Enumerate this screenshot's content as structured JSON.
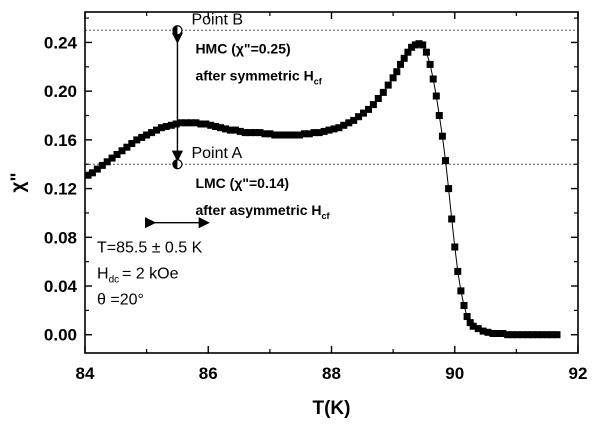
{
  "chart_data": {
    "type": "scatter",
    "xlabel": "T(K)",
    "ylabel": "χ\"",
    "xlim": [
      84,
      92
    ],
    "ylim": [
      -0.015,
      0.265
    ],
    "xticks": [
      "84",
      "86",
      "88",
      "90",
      "92"
    ],
    "yticks": [
      "0.00",
      "0.04",
      "0.08",
      "0.12",
      "0.16",
      "0.20",
      "0.24"
    ],
    "xtick_values": [
      84,
      86,
      88,
      90,
      92
    ],
    "ytick_values": [
      0,
      0.04,
      0.08,
      0.12,
      0.16,
      0.2,
      0.24
    ],
    "hlines": [
      0.25,
      0.14
    ],
    "series": [
      {
        "marker": "square",
        "color": "#000000",
        "x": [
          84.05,
          84.12,
          84.2,
          84.28,
          84.36,
          84.44,
          84.52,
          84.6,
          84.68,
          84.76,
          84.84,
          84.92,
          85.0,
          85.08,
          85.16,
          85.24,
          85.32,
          85.4,
          85.48,
          85.56,
          85.64,
          85.72,
          85.8,
          85.88,
          85.96,
          86.04,
          86.12,
          86.2,
          86.28,
          86.36,
          86.44,
          86.52,
          86.6,
          86.68,
          86.76,
          86.84,
          86.92,
          87.0,
          87.08,
          87.16,
          87.24,
          87.32,
          87.4,
          87.48,
          87.56,
          87.64,
          87.72,
          87.8,
          87.88,
          87.96,
          88.04,
          88.12,
          88.2,
          88.28,
          88.36,
          88.44,
          88.52,
          88.6,
          88.68,
          88.76,
          88.84,
          88.92,
          89.0,
          89.06,
          89.12,
          89.18,
          89.24,
          89.3,
          89.36,
          89.42,
          89.48,
          89.54,
          89.6,
          89.65,
          89.7,
          89.75,
          89.8,
          89.85,
          89.9,
          89.95,
          90.0,
          90.05,
          90.1,
          90.15,
          90.2,
          90.25,
          90.3,
          90.38,
          90.46,
          90.54,
          90.62,
          90.7,
          90.78,
          90.86,
          90.94,
          91.02,
          91.1,
          91.18,
          91.26,
          91.34,
          91.42,
          91.5,
          91.58,
          91.66
        ],
        "y": [
          0.131,
          0.133,
          0.136,
          0.139,
          0.142,
          0.145,
          0.148,
          0.151,
          0.154,
          0.157,
          0.16,
          0.162,
          0.164,
          0.166,
          0.168,
          0.17,
          0.171,
          0.172,
          0.173,
          0.174,
          0.174,
          0.174,
          0.174,
          0.173,
          0.173,
          0.172,
          0.171,
          0.17,
          0.169,
          0.168,
          0.168,
          0.167,
          0.166,
          0.166,
          0.166,
          0.166,
          0.165,
          0.165,
          0.164,
          0.164,
          0.164,
          0.164,
          0.164,
          0.164,
          0.165,
          0.165,
          0.166,
          0.166,
          0.167,
          0.168,
          0.169,
          0.17,
          0.172,
          0.174,
          0.176,
          0.179,
          0.182,
          0.185,
          0.189,
          0.194,
          0.199,
          0.205,
          0.211,
          0.216,
          0.222,
          0.227,
          0.232,
          0.236,
          0.238,
          0.239,
          0.238,
          0.232,
          0.222,
          0.21,
          0.196,
          0.18,
          0.163,
          0.143,
          0.12,
          0.095,
          0.072,
          0.052,
          0.036,
          0.024,
          0.015,
          0.01,
          0.007,
          0.005,
          0.003,
          0.002,
          0.001,
          0.001,
          0.001,
          0.0,
          0.0,
          0.0,
          0.0,
          0.0,
          0.0,
          0.0,
          0.0,
          0.0,
          0.0,
          0.0
        ]
      }
    ],
    "annotations": {
      "point_b": "Point B",
      "point_a": "Point A",
      "hmc_label": "HMC (χ\"=0.25)",
      "hmc_sub": "after symmetric H",
      "hmc_sub_index": "cf",
      "lmc_label": "LMC (χ\"=0.14)",
      "lmc_sub": "after asymmetric H",
      "lmc_sub_index": "cf",
      "cond_t": "T=85.5 ± 0.5 K",
      "cond_h": "H",
      "cond_h_index": "dc",
      "cond_h_value": "= 2 kOe",
      "cond_theta": "θ =20°"
    },
    "marker_x": 85.5,
    "point_b_y": 0.25,
    "point_a_y": 0.14,
    "t_range": [
      85.0,
      86.0
    ],
    "t_range_y": 0.092
  }
}
